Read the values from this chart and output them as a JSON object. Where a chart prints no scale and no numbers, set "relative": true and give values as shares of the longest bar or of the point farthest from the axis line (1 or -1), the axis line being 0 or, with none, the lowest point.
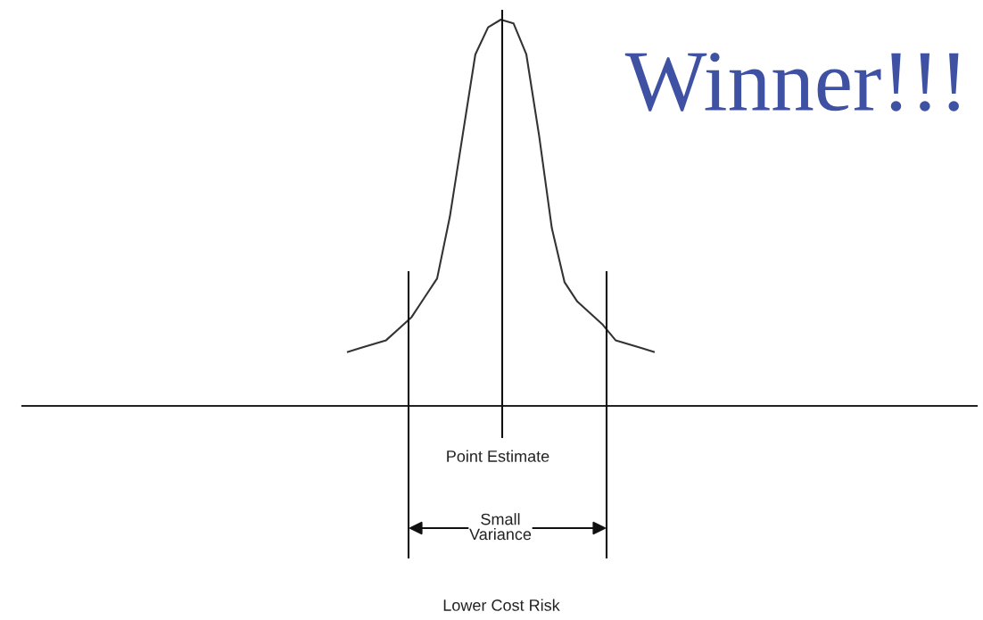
{
  "chart_data": {
    "type": "line",
    "relative": true,
    "categories": [
      null,
      null,
      null,
      null,
      null,
      null,
      null,
      null,
      null,
      null,
      null,
      null,
      null,
      null,
      null,
      null,
      null,
      null,
      null,
      null,
      null,
      null,
      null,
      null,
      null
    ],
    "series": [
      {
        "color": "#333333",
        "values": [
          0.14,
          0.15,
          0.16,
          0.17,
          0.2,
          0.23,
          0.28,
          0.33,
          0.49,
          0.7,
          0.91,
          0.98,
          1,
          0.99,
          0.91,
          0.7,
          0.46,
          0.32,
          0.27,
          0.24,
          0.21,
          0.17,
          0.16,
          0.15,
          0.14
        ]
      }
    ],
    "annotations": [
      "Point Estimate",
      "Small\nVariance",
      "Lower Cost Risk",
      "Winner!!!"
    ],
    "legend": false,
    "marker": "none",
    "line_style": "solid"
  }
}
